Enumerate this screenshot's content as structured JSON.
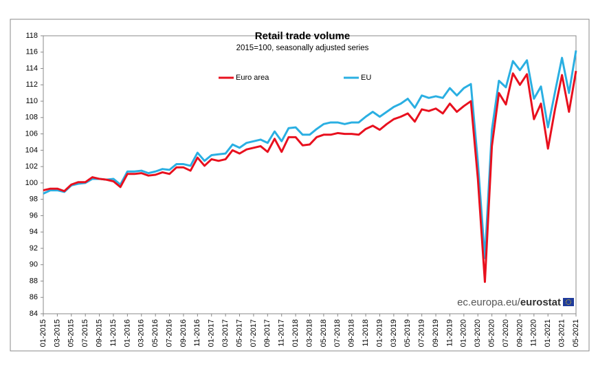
{
  "chart_data": {
    "type": "line",
    "title": "Retail trade volume",
    "subtitle": "2015=100,  seasonally adjusted series",
    "source_prefix": "ec.europa.eu/",
    "source_brand": "eurostat",
    "categories": [
      "01-2015",
      null,
      "03-2015",
      null,
      "05-2015",
      null,
      "07-2015",
      null,
      "09-2015",
      null,
      "11-2015",
      null,
      "01-2016",
      null,
      "03-2016",
      null,
      "05-2016",
      null,
      "07-2016",
      null,
      "09-2016",
      null,
      "11-2016",
      null,
      "01-2017",
      null,
      "03-2017",
      null,
      "05-2017",
      null,
      "07-2017",
      null,
      "09-2017",
      null,
      "11-2017",
      null,
      "01-2018",
      null,
      "03-2018",
      null,
      "05-2018",
      null,
      "07-2018",
      null,
      "09-2018",
      null,
      "11-2018",
      null,
      "01-2019",
      null,
      "03-2019",
      null,
      "05-2019",
      null,
      "07-2019",
      null,
      "09-2019",
      null,
      "11-2019",
      null,
      "01-2020",
      null,
      "03-2020",
      null,
      "05-2020",
      null,
      "07-2020",
      null,
      "09-2020",
      null,
      "11-2020",
      null,
      "01-2021",
      null,
      "03-2021",
      null,
      "05-2021"
    ],
    "series": [
      {
        "name": "Euro area",
        "color": "#e8101e",
        "values": [
          99.1,
          99.3,
          99.3,
          99.0,
          99.8,
          100.1,
          100.1,
          100.7,
          100.5,
          100.4,
          100.2,
          99.5,
          101.1,
          101.1,
          101.2,
          100.9,
          101.0,
          101.3,
          101.1,
          101.9,
          101.9,
          101.5,
          103.1,
          102.1,
          102.9,
          102.7,
          102.9,
          104.0,
          103.6,
          104.1,
          104.3,
          104.5,
          103.8,
          105.4,
          103.8,
          105.6,
          105.6,
          104.6,
          104.7,
          105.6,
          105.9,
          105.9,
          106.1,
          106.0,
          106.0,
          105.9,
          106.6,
          107.0,
          106.5,
          107.2,
          107.8,
          108.1,
          108.5,
          107.5,
          109.0,
          108.8,
          109.1,
          108.5,
          109.7,
          108.7,
          109.4,
          110.0,
          100.5,
          87.9,
          104.5,
          111.0,
          109.6,
          113.4,
          112.0,
          113.3,
          107.8,
          109.7,
          104.2,
          109.0,
          113.2,
          108.7,
          113.7
        ]
      },
      {
        "name": "EU",
        "color": "#2aafe2",
        "values": [
          98.7,
          99.1,
          99.1,
          98.9,
          99.7,
          99.9,
          100.0,
          100.5,
          100.5,
          100.4,
          100.5,
          99.8,
          101.4,
          101.4,
          101.5,
          101.2,
          101.4,
          101.7,
          101.6,
          102.3,
          102.3,
          102.1,
          103.7,
          102.7,
          103.4,
          103.5,
          103.6,
          104.7,
          104.3,
          104.9,
          105.1,
          105.3,
          104.9,
          106.3,
          105.1,
          106.7,
          106.8,
          105.9,
          105.9,
          106.6,
          107.2,
          107.4,
          107.4,
          107.2,
          107.4,
          107.4,
          108.1,
          108.7,
          108.1,
          108.7,
          109.3,
          109.7,
          110.3,
          109.2,
          110.7,
          110.4,
          110.6,
          110.4,
          111.6,
          110.7,
          111.6,
          112.1,
          102.5,
          90.8,
          106.5,
          112.5,
          111.7,
          114.9,
          113.8,
          115.0,
          110.3,
          111.8,
          106.8,
          111.1,
          115.3,
          111.0,
          116.2
        ]
      }
    ],
    "ylim": [
      84,
      118
    ],
    "yticks": [
      84,
      86,
      88,
      90,
      92,
      94,
      96,
      98,
      100,
      102,
      104,
      106,
      108,
      110,
      112,
      114,
      116,
      118
    ],
    "grid": false,
    "legend": "top"
  }
}
